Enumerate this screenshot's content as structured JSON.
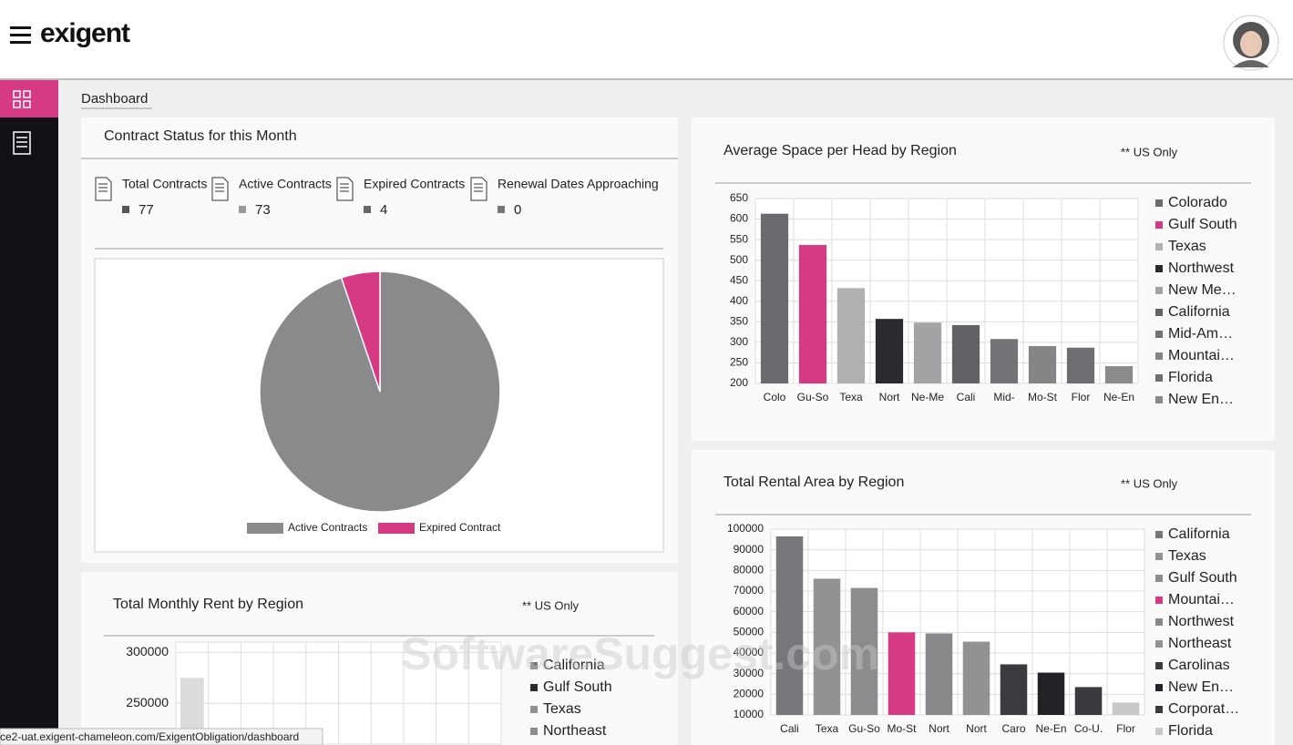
{
  "header": {
    "logo": "exigent"
  },
  "breadcrumb": "Dashboard",
  "status_bar": "ce2-uat.exigent-chameleon.com/ExigentObligation/dashboard",
  "watermark": "SoftwareSuggest.com",
  "stats": [
    {
      "label": "Total Contracts",
      "value": "77"
    },
    {
      "label": "Active Contracts",
      "value": "73"
    },
    {
      "label": "Expired Contracts",
      "value": "4"
    },
    {
      "label": "Renewal Dates Approaching",
      "value": "0"
    }
  ],
  "chart_data": [
    {
      "type": "pie",
      "title": "Contract Status for this Month",
      "categories": [
        "Active Contracts",
        "Expired Contract"
      ],
      "values": [
        73,
        4
      ],
      "colors": [
        "#8a898c",
        "#d63a84"
      ]
    },
    {
      "type": "bar",
      "title": "Average Space per Head by Region",
      "note": "** US Only",
      "categories": [
        "Colo",
        "Gu-So",
        "Texa",
        "Nort",
        "Ne-Me",
        "Cali",
        "Mid-",
        "Mo-St",
        "Flor",
        "Ne-En"
      ],
      "values": [
        613,
        537,
        432,
        357,
        348,
        342,
        308,
        291,
        287,
        242
      ],
      "colors": [
        "#6b6a6e",
        "#d63a84",
        "#b0afb1",
        "#2b2a2e",
        "#a3a2a5",
        "#626165",
        "#747377",
        "#858487",
        "#6e6d71",
        "#8a898c"
      ],
      "legend": [
        "Colorado",
        "Gulf South",
        "Texas",
        "Northwest",
        "New Me…",
        "California",
        "Mid-Am…",
        "Mountai…",
        "Florida",
        "New En…"
      ],
      "ylim": [
        200,
        650
      ],
      "yticks": [
        200,
        250,
        300,
        350,
        400,
        450,
        500,
        550,
        600,
        650
      ],
      "grid": true
    },
    {
      "type": "bar",
      "title": "Total Rental Area by Region",
      "note": "** US Only",
      "categories": [
        "Cali",
        "Texa",
        "Gu-So",
        "Mo-St",
        "Nort",
        "Nort",
        "Caro",
        "Ne-En",
        "Co-U.",
        "Flor"
      ],
      "values": [
        96500,
        76000,
        71500,
        50000,
        49500,
        45500,
        34500,
        30500,
        23500,
        16000
      ],
      "colors": [
        "#77767a",
        "#929194",
        "#8c8b8e",
        "#d63a84",
        "#88878a",
        "#929194",
        "#3b3a3e",
        "#222126",
        "#3a393d",
        "#c8c7c9"
      ],
      "legend": [
        "California",
        "Texas",
        "Gulf South",
        "Mountai…",
        "Northwest",
        "Northeast",
        "Carolinas",
        "New En…",
        "Corporat…",
        "Florida"
      ],
      "ylim": [
        10000,
        100000
      ],
      "yticks": [
        10000,
        20000,
        30000,
        40000,
        50000,
        60000,
        70000,
        80000,
        90000,
        100000
      ],
      "grid": true
    },
    {
      "type": "bar",
      "title": "Total Monthly Rent by Region",
      "note": "** US Only",
      "categories": [
        null
      ],
      "values": [
        275000
      ],
      "colors": [
        "#dcdcdc"
      ],
      "legend": [
        "California",
        "Gulf South",
        "Texas",
        "Northeast"
      ],
      "legend_colors": [
        "#77767a",
        "#2b2a2e",
        "#929194",
        "#8a898c"
      ],
      "ylim": [
        210000,
        310000
      ],
      "yticks": [
        250000,
        300000
      ],
      "grid": true
    }
  ]
}
